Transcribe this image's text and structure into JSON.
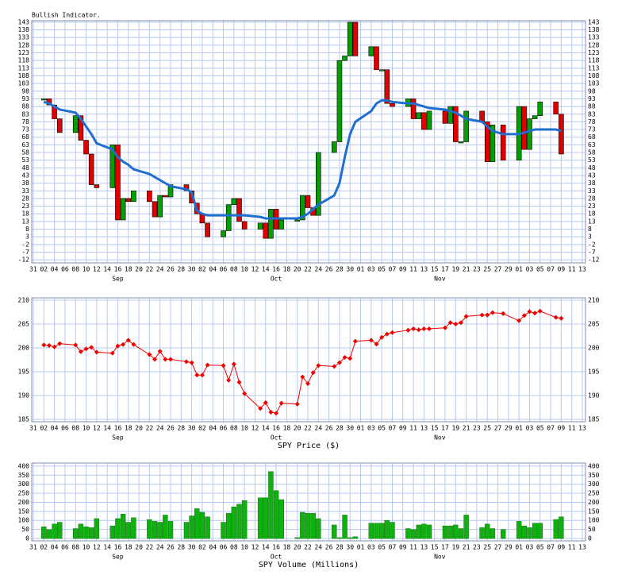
{
  "chart_data": [
    {
      "type": "indicator",
      "title": "Bullish Indicator.",
      "x": [
        2,
        3,
        4,
        5,
        8,
        9,
        10,
        11,
        12,
        15,
        16,
        17,
        18,
        19,
        22,
        23,
        24,
        25,
        26,
        29,
        30,
        31,
        32,
        33,
        36,
        37,
        38,
        39,
        40,
        43,
        44,
        45,
        46,
        47,
        50,
        51,
        52,
        53,
        54,
        57,
        58,
        59,
        60,
        61,
        64,
        65,
        66,
        67,
        68,
        71,
        72,
        73,
        74,
        75,
        78,
        79,
        80,
        81,
        82,
        85,
        86,
        87,
        89,
        92,
        93,
        94,
        95,
        96,
        99,
        100
      ],
      "values": [
        93,
        89,
        80,
        71,
        82,
        66,
        57,
        37,
        35,
        63,
        14,
        28,
        26,
        33,
        26,
        16,
        30,
        29,
        37,
        33,
        25,
        18,
        12,
        3,
        7,
        24,
        28,
        13,
        8,
        12,
        2,
        21,
        8,
        14,
        14,
        30,
        22,
        17,
        58,
        65,
        118,
        121,
        143,
        121,
        127,
        112,
        112,
        90,
        88,
        93,
        80,
        84,
        73,
        85,
        77,
        88,
        65,
        65,
        85,
        78,
        52,
        76,
        53,
        88,
        60,
        80,
        82,
        91,
        83,
        57
      ],
      "average": [
        91,
        90,
        88,
        86,
        84,
        80,
        75,
        70,
        64,
        60,
        55,
        52,
        50,
        47,
        44,
        42,
        40,
        38,
        36,
        34,
        32,
        20,
        18,
        17,
        17,
        17,
        17,
        17,
        17,
        16,
        15,
        15,
        15,
        15,
        15,
        16,
        18,
        21,
        24,
        30,
        38,
        55,
        70,
        78,
        85,
        90,
        92,
        92,
        91,
        90,
        90,
        89,
        88,
        87,
        86,
        85,
        84,
        82,
        80,
        78,
        75,
        72,
        70,
        70,
        71,
        72,
        73,
        73,
        73,
        72
      ],
      "up_color": "#00a000",
      "down_color": "#e00000",
      "average_color": "#1e6fd0",
      "xlim": [
        -0.3,
        104.6
      ],
      "ylim": [
        -14,
        144
      ],
      "yticks": [
        -12,
        -7,
        -2,
        3,
        8,
        13,
        18,
        23,
        28,
        33,
        38,
        43,
        48,
        53,
        58,
        63,
        68,
        73,
        78,
        83,
        88,
        93,
        98,
        103,
        108,
        113,
        118,
        123,
        128,
        133,
        138,
        143
      ],
      "xticks": [
        {
          "value": 0,
          "label": "31"
        },
        {
          "value": 2,
          "label": "02"
        },
        {
          "value": 4,
          "label": "04"
        },
        {
          "value": 6,
          "label": "06"
        },
        {
          "value": 8,
          "label": "08"
        },
        10,
        12,
        14,
        16,
        18,
        20,
        22,
        24,
        26,
        28,
        30,
        {
          "value": 32,
          "label": "02"
        },
        {
          "value": 34,
          "label": "04"
        },
        {
          "value": 36,
          "label": "06"
        },
        {
          "value": 38,
          "label": "08"
        },
        {
          "value": 40,
          "label": "10"
        },
        {
          "value": 42,
          "label": "12"
        },
        {
          "value": 44,
          "label": "14"
        },
        {
          "value": 46,
          "label": "16"
        },
        {
          "value": 48,
          "label": "18"
        },
        {
          "value": 50,
          "label": "20"
        },
        {
          "value": 52,
          "label": "22"
        },
        {
          "value": 54,
          "label": "24"
        },
        {
          "value": 56,
          "label": "26"
        },
        {
          "value": 58,
          "label": "28"
        },
        {
          "value": 60,
          "label": "30"
        },
        {
          "value": 62,
          "label": "01"
        },
        {
          "value": 64,
          "label": "03"
        },
        {
          "value": 66,
          "label": "05"
        },
        {
          "value": 68,
          "label": "07"
        },
        {
          "value": 70,
          "label": "09"
        },
        {
          "value": 72,
          "label": "11"
        },
        {
          "value": 74,
          "label": "13"
        },
        {
          "value": 76,
          "label": "15"
        },
        {
          "value": 78,
          "label": "17"
        },
        {
          "value": 80,
          "label": "19"
        },
        {
          "value": 82,
          "label": "21"
        },
        {
          "value": 84,
          "label": "23"
        },
        {
          "value": 86,
          "label": "25"
        },
        {
          "value": 88,
          "label": "27"
        },
        {
          "value": 90,
          "label": "29"
        },
        {
          "value": 92,
          "label": "01"
        },
        {
          "value": 94,
          "label": "03"
        },
        {
          "value": 96,
          "label": "05"
        },
        {
          "value": 98,
          "label": "07"
        },
        {
          "value": 100,
          "label": "09"
        },
        {
          "value": 102,
          "label": "11"
        },
        {
          "value": 104,
          "label": "13"
        }
      ],
      "month_ticks": [
        {
          "value": 16,
          "label": "Sep"
        },
        {
          "value": 46,
          "label": "Oct"
        },
        {
          "value": 77,
          "label": "Nov"
        }
      ],
      "grid": true
    },
    {
      "type": "line",
      "xlabel": "SPY Price ($)",
      "x": [
        2,
        3,
        4,
        5,
        8,
        9,
        10,
        11,
        12,
        15,
        16,
        17,
        18,
        19,
        22,
        23,
        24,
        25,
        26,
        29,
        30,
        31,
        32,
        33,
        36,
        37,
        38,
        39,
        40,
        43,
        44,
        45,
        46,
        47,
        50,
        51,
        52,
        53,
        54,
        57,
        58,
        59,
        60,
        61,
        64,
        65,
        66,
        67,
        68,
        71,
        72,
        73,
        74,
        75,
        78,
        79,
        80,
        81,
        82,
        85,
        86,
        87,
        89,
        92,
        93,
        94,
        95,
        96,
        99,
        100
      ],
      "values": [
        200.6,
        200.5,
        200.2,
        200.9,
        200.6,
        199.2,
        199.8,
        200.1,
        199.1,
        198.9,
        200.4,
        200.7,
        201.6,
        200.7,
        198.6,
        197.6,
        199.3,
        197.6,
        197.6,
        197.1,
        196.9,
        194.3,
        194.3,
        196.4,
        196.3,
        193.2,
        196.6,
        192.8,
        190.4,
        187.3,
        188.5,
        186.5,
        186.3,
        188.4,
        188.2,
        193.9,
        192.5,
        194.8,
        196.3,
        196.1,
        196.9,
        198.0,
        197.8,
        201.4,
        201.6,
        200.8,
        202.2,
        202.9,
        203.2,
        203.7,
        204.0,
        203.8,
        204.0,
        204.0,
        204.2,
        205.3,
        205.0,
        205.3,
        206.6,
        206.9,
        206.9,
        207.4,
        207.2,
        205.7,
        206.8,
        207.6,
        207.3,
        207.7,
        206.4,
        206.2
      ],
      "color": "#ee0000",
      "xlim": [
        -0.3,
        104.6
      ],
      "ylim": [
        184.5,
        210.5
      ],
      "yticks": [
        185,
        190,
        195,
        200,
        205,
        210
      ],
      "xticks": [
        {
          "value": 0,
          "label": "31"
        },
        {
          "value": 2,
          "label": "02"
        },
        {
          "value": 4,
          "label": "04"
        },
        {
          "value": 6,
          "label": "06"
        },
        {
          "value": 8,
          "label": "08"
        },
        10,
        12,
        14,
        16,
        18,
        20,
        22,
        24,
        26,
        28,
        30,
        {
          "value": 32,
          "label": "02"
        },
        {
          "value": 34,
          "label": "04"
        },
        {
          "value": 36,
          "label": "06"
        },
        {
          "value": 38,
          "label": "08"
        },
        {
          "value": 40,
          "label": "10"
        },
        {
          "value": 42,
          "label": "12"
        },
        {
          "value": 44,
          "label": "14"
        },
        {
          "value": 46,
          "label": "16"
        },
        {
          "value": 48,
          "label": "18"
        },
        {
          "value": 50,
          "label": "20"
        },
        {
          "value": 52,
          "label": "22"
        },
        {
          "value": 54,
          "label": "24"
        },
        {
          "value": 56,
          "label": "26"
        },
        {
          "value": 58,
          "label": "28"
        },
        {
          "value": 60,
          "label": "30"
        },
        {
          "value": 62,
          "label": "01"
        },
        {
          "value": 64,
          "label": "03"
        },
        {
          "value": 66,
          "label": "05"
        },
        {
          "value": 68,
          "label": "07"
        },
        {
          "value": 70,
          "label": "09"
        },
        {
          "value": 72,
          "label": "11"
        },
        {
          "value": 74,
          "label": "13"
        },
        {
          "value": 76,
          "label": "15"
        },
        {
          "value": 78,
          "label": "17"
        },
        {
          "value": 80,
          "label": "19"
        },
        {
          "value": 82,
          "label": "21"
        },
        {
          "value": 84,
          "label": "23"
        },
        {
          "value": 86,
          "label": "25"
        },
        {
          "value": 88,
          "label": "27"
        },
        {
          "value": 90,
          "label": "29"
        },
        {
          "value": 92,
          "label": "01"
        },
        {
          "value": 94,
          "label": "03"
        },
        {
          "value": 96,
          "label": "05"
        },
        {
          "value": 98,
          "label": "07"
        },
        {
          "value": 100,
          "label": "09"
        },
        {
          "value": 102,
          "label": "11"
        },
        {
          "value": 104,
          "label": "13"
        }
      ],
      "month_ticks": [
        {
          "value": 16,
          "label": "Sep"
        },
        {
          "value": 46,
          "label": "Oct"
        },
        {
          "value": 77,
          "label": "Nov"
        }
      ],
      "grid": true
    },
    {
      "type": "bar",
      "xlabel": "SPY Volume (Millions)",
      "x": [
        2,
        3,
        4,
        5,
        8,
        9,
        10,
        11,
        12,
        15,
        16,
        17,
        18,
        19,
        22,
        23,
        24,
        25,
        26,
        29,
        30,
        31,
        32,
        33,
        36,
        37,
        38,
        39,
        40,
        43,
        44,
        45,
        46,
        47,
        50,
        51,
        52,
        53,
        54,
        57,
        58,
        59,
        60,
        61,
        64,
        65,
        66,
        67,
        68,
        71,
        72,
        73,
        74,
        75,
        78,
        79,
        80,
        81,
        82,
        85,
        86,
        87,
        89,
        92,
        93,
        94,
        95,
        96,
        99,
        100
      ],
      "values": [
        65,
        50,
        80,
        90,
        55,
        80,
        65,
        60,
        110,
        70,
        110,
        135,
        90,
        115,
        105,
        95,
        90,
        130,
        95,
        90,
        125,
        165,
        145,
        120,
        90,
        140,
        175,
        190,
        210,
        225,
        225,
        370,
        265,
        215,
        5,
        145,
        140,
        140,
        110,
        75,
        5,
        130,
        5,
        10,
        85,
        85,
        85,
        100,
        90,
        55,
        50,
        75,
        80,
        75,
        70,
        70,
        75,
        55,
        130,
        60,
        80,
        55,
        50,
        95,
        70,
        60,
        85,
        85,
        105,
        120
      ],
      "color": "#11b011",
      "xlim": [
        -0.3,
        104.6
      ],
      "ylim": [
        -13,
        417
      ],
      "yticks": [
        0,
        50,
        100,
        150,
        200,
        250,
        300,
        350,
        400
      ],
      "xticks": [
        {
          "value": 0,
          "label": "31"
        },
        {
          "value": 2,
          "label": "02"
        },
        {
          "value": 4,
          "label": "04"
        },
        {
          "value": 6,
          "label": "06"
        },
        {
          "value": 8,
          "label": "08"
        },
        10,
        12,
        14,
        16,
        18,
        20,
        22,
        24,
        26,
        28,
        30,
        {
          "value": 32,
          "label": "02"
        },
        {
          "value": 34,
          "label": "04"
        },
        {
          "value": 36,
          "label": "06"
        },
        {
          "value": 38,
          "label": "08"
        },
        {
          "value": 40,
          "label": "10"
        },
        {
          "value": 42,
          "label": "12"
        },
        {
          "value": 44,
          "label": "14"
        },
        {
          "value": 46,
          "label": "16"
        },
        {
          "value": 48,
          "label": "18"
        },
        {
          "value": 50,
          "label": "20"
        },
        {
          "value": 52,
          "label": "22"
        },
        {
          "value": 54,
          "label": "24"
        },
        {
          "value": 56,
          "label": "26"
        },
        {
          "value": 58,
          "label": "28"
        },
        {
          "value": 60,
          "label": "30"
        },
        {
          "value": 62,
          "label": "01"
        },
        {
          "value": 64,
          "label": "03"
        },
        {
          "value": 66,
          "label": "05"
        },
        {
          "value": 68,
          "label": "07"
        },
        {
          "value": 70,
          "label": "09"
        },
        {
          "value": 72,
          "label": "11"
        },
        {
          "value": 74,
          "label": "13"
        },
        {
          "value": 76,
          "label": "15"
        },
        {
          "value": 78,
          "label": "17"
        },
        {
          "value": 80,
          "label": "19"
        },
        {
          "value": 82,
          "label": "21"
        },
        {
          "value": 84,
          "label": "23"
        },
        {
          "value": 86,
          "label": "25"
        },
        {
          "value": 88,
          "label": "27"
        },
        {
          "value": 90,
          "label": "29"
        },
        {
          "value": 92,
          "label": "01"
        },
        {
          "value": 94,
          "label": "03"
        },
        {
          "value": 96,
          "label": "05"
        },
        {
          "value": 98,
          "label": "07"
        },
        {
          "value": 100,
          "label": "09"
        },
        {
          "value": 102,
          "label": "11"
        },
        {
          "value": 104,
          "label": "13"
        }
      ],
      "month_ticks": [
        {
          "value": 16,
          "label": "Sep"
        },
        {
          "value": 46,
          "label": "Oct"
        },
        {
          "value": 77,
          "label": "Nov"
        }
      ],
      "grid": true
    }
  ]
}
